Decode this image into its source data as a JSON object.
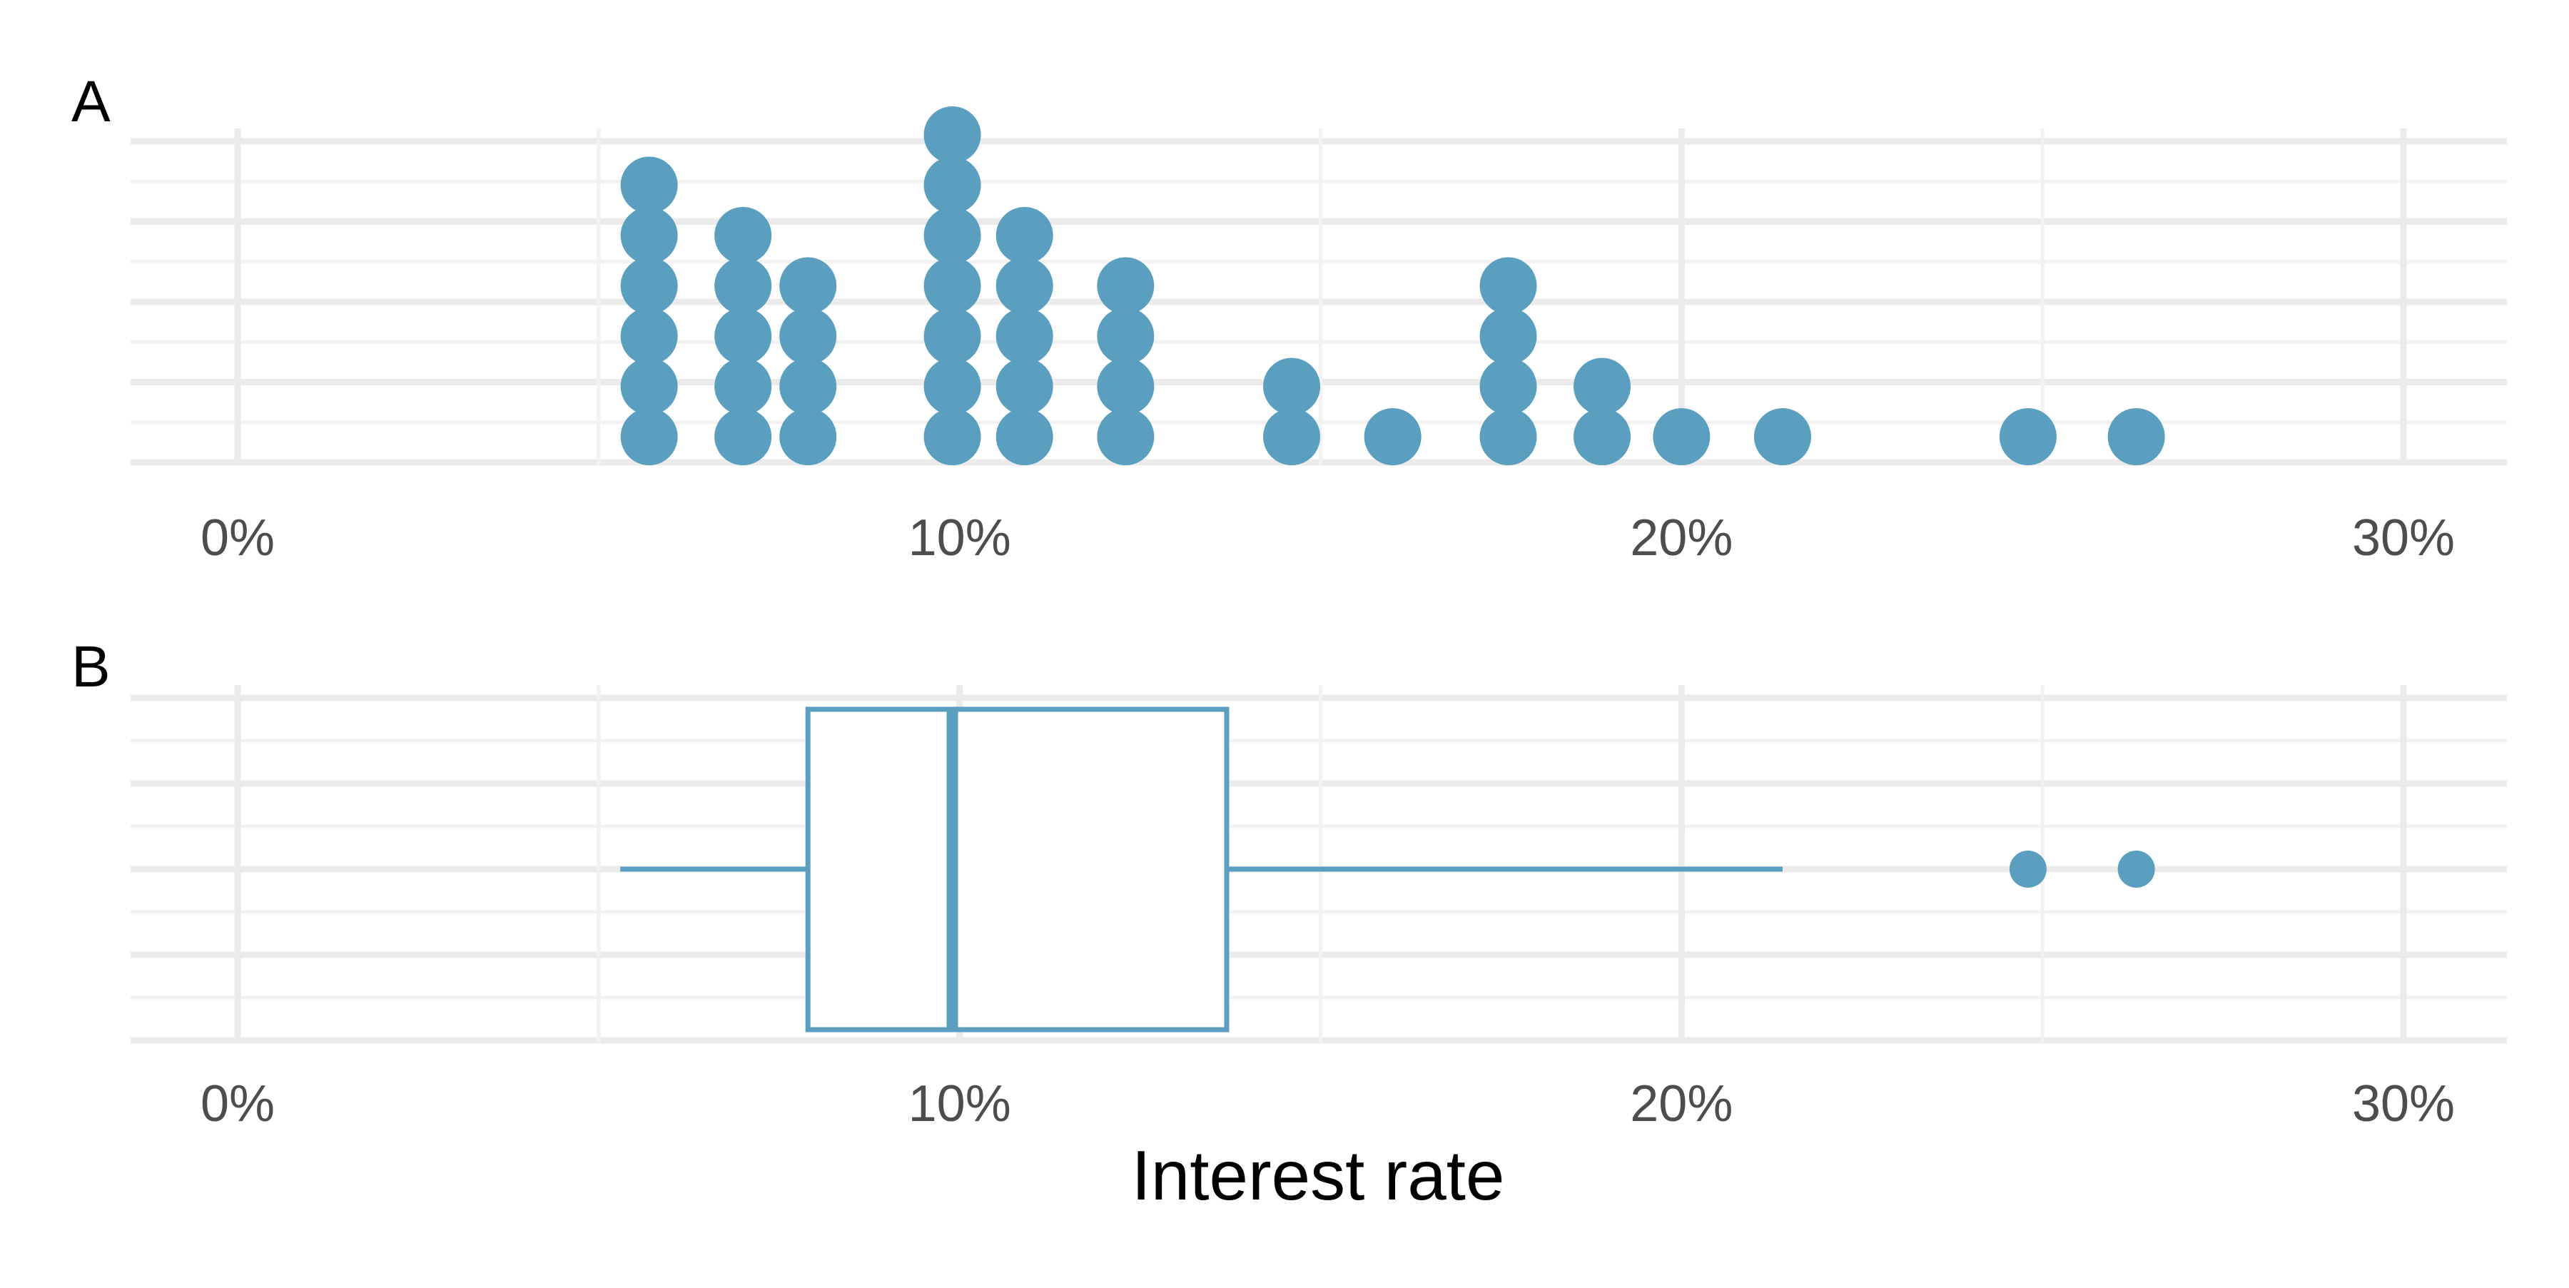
{
  "colors": {
    "point": "#5a9ec0",
    "box_stroke": "#5a9ec0",
    "grid_major": "#ebebeb",
    "grid_minor": "#f2f2f2",
    "background": "#ffffff"
  },
  "chart_data": [
    {
      "panel": "A",
      "type": "dotplot",
      "x_unit": "percent",
      "xlim": [
        -1.5,
        31.5
      ],
      "x_ticks": [
        0,
        10,
        20,
        30
      ],
      "x_tick_labels": [
        "0%",
        "10%",
        "20%",
        "30%"
      ],
      "grid": true,
      "stacks": [
        {
          "x": 5.7,
          "count": 6
        },
        {
          "x": 7.0,
          "count": 5
        },
        {
          "x": 7.9,
          "count": 4
        },
        {
          "x": 9.9,
          "count": 7
        },
        {
          "x": 10.9,
          "count": 5
        },
        {
          "x": 12.3,
          "count": 4
        },
        {
          "x": 14.6,
          "count": 2
        },
        {
          "x": 16.0,
          "count": 1
        },
        {
          "x": 17.6,
          "count": 4
        },
        {
          "x": 18.9,
          "count": 2
        },
        {
          "x": 20.0,
          "count": 1
        },
        {
          "x": 21.4,
          "count": 1
        },
        {
          "x": 24.8,
          "count": 1
        },
        {
          "x": 26.3,
          "count": 1
        }
      ]
    },
    {
      "panel": "B",
      "type": "boxplot",
      "x_unit": "percent",
      "xlim": [
        -1.5,
        31.5
      ],
      "x_ticks": [
        0,
        10,
        20,
        30
      ],
      "x_tick_labels": [
        "0%",
        "10%",
        "20%",
        "30%"
      ],
      "grid": true,
      "whisker_low": 5.3,
      "q1": 7.9,
      "median": 9.9,
      "q3": 13.7,
      "whisker_high": 21.4,
      "outliers": [
        24.8,
        26.3
      ]
    }
  ],
  "panels": {
    "a_label": "A",
    "b_label": "B"
  },
  "axis": {
    "xlabel": "Interest rate"
  }
}
